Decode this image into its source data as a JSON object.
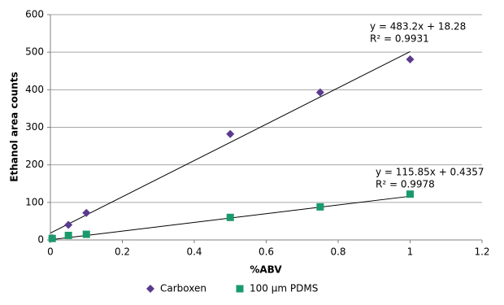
{
  "chart_data": {
    "type": "scatter",
    "x_label": "%ABV",
    "y_label": "Ethanol area counts",
    "x": [
      0.005,
      0.05,
      0.1,
      0.5,
      0.75,
      1
    ],
    "series": [
      {
        "name": "Carboxen",
        "color": "#5b3a8e",
        "marker": "diamond",
        "values": [
          5,
          40,
          72,
          282,
          393,
          481
        ],
        "trendline": {
          "slope": 483.2,
          "intercept": 18.28,
          "equation": "y = 483.2x + 18.28",
          "r2": "R² = 0.9931"
        }
      },
      {
        "name": "100 µm PDMS",
        "color": "#1a9a6c",
        "marker": "square",
        "values": [
          4,
          12,
          15,
          60,
          88,
          122
        ],
        "trendline": {
          "slope": 115.85,
          "intercept": 0.4357,
          "equation": "y = 115.85x + 0.4357",
          "r2": "R² = 0.9978"
        }
      }
    ],
    "xlim": [
      0,
      1.2
    ],
    "xticks": [
      0,
      0.2,
      0.4,
      0.6,
      0.8,
      1,
      1.2
    ],
    "ylim": [
      0,
      600
    ],
    "yticks": [
      0,
      100,
      200,
      300,
      400,
      500,
      600
    ],
    "grid": true,
    "legend": "bottom"
  }
}
